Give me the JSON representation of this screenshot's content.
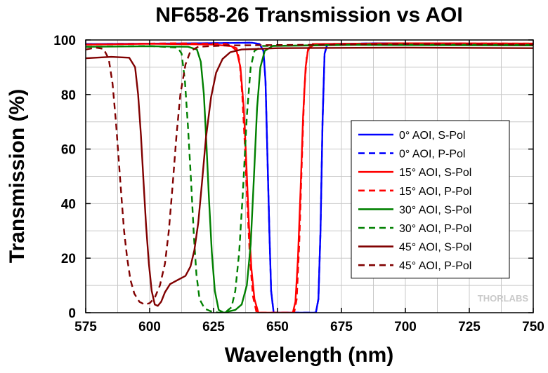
{
  "chart_data": {
    "type": "line",
    "title": "NF658-26 Transmission vs AOI",
    "xlabel": "Wavelength (nm)",
    "ylabel": "Transmission (%)",
    "xlim": [
      575,
      750
    ],
    "ylim": [
      0,
      100
    ],
    "xticks": [
      575,
      600,
      625,
      650,
      675,
      700,
      725,
      750
    ],
    "yticks": [
      0,
      20,
      40,
      60,
      80,
      100
    ],
    "grid": true,
    "legend_position": "right",
    "watermark": "THORLABS",
    "series": [
      {
        "name": "0° AOI, S-Pol",
        "color": "#0000ff",
        "dash": "solid",
        "points": [
          [
            575,
            98.5
          ],
          [
            620,
            98.8
          ],
          [
            640,
            99
          ],
          [
            643,
            98.5
          ],
          [
            644.5,
            96
          ],
          [
            645.3,
            85
          ],
          [
            646,
            60
          ],
          [
            646.8,
            30
          ],
          [
            647.5,
            8
          ],
          [
            648.5,
            0
          ],
          [
            665,
            0
          ],
          [
            666,
            5
          ],
          [
            666.8,
            30
          ],
          [
            667.6,
            70
          ],
          [
            668.4,
            95
          ],
          [
            669.5,
            98.5
          ],
          [
            690,
            98.8
          ],
          [
            720,
            98.7
          ],
          [
            750,
            98.6
          ]
        ]
      },
      {
        "name": "0° AOI, P-Pol",
        "color": "#0000ff",
        "dash": "dashed",
        "points": [
          [
            575,
            98.5
          ],
          [
            620,
            98.8
          ],
          [
            640,
            99
          ],
          [
            643,
            98.5
          ],
          [
            644.5,
            96
          ],
          [
            645.3,
            85
          ],
          [
            646,
            60
          ],
          [
            646.8,
            30
          ],
          [
            647.5,
            8
          ],
          [
            648.5,
            0
          ],
          [
            665,
            0
          ],
          [
            666,
            5
          ],
          [
            666.8,
            30
          ],
          [
            667.6,
            70
          ],
          [
            668.4,
            95
          ],
          [
            669.5,
            98.5
          ],
          [
            690,
            98.8
          ],
          [
            720,
            98.7
          ],
          [
            750,
            98.6
          ]
        ]
      },
      {
        "name": "15° AOI, S-Pol",
        "color": "#ff0000",
        "dash": "solid",
        "points": [
          [
            575,
            98.3
          ],
          [
            600,
            98.6
          ],
          [
            625,
            98.3
          ],
          [
            632,
            97.7
          ],
          [
            634,
            96
          ],
          [
            635.5,
            90
          ],
          [
            636.8,
            75
          ],
          [
            637.8,
            55
          ],
          [
            638.8,
            33
          ],
          [
            639.8,
            16
          ],
          [
            641,
            5
          ],
          [
            642.5,
            0
          ],
          [
            656,
            0
          ],
          [
            657,
            4
          ],
          [
            658,
            20
          ],
          [
            659,
            45
          ],
          [
            660,
            72
          ],
          [
            661,
            90
          ],
          [
            662,
            97
          ],
          [
            665,
            98.5
          ],
          [
            700,
            98.8
          ],
          [
            750,
            98.7
          ]
        ]
      },
      {
        "name": "15° AOI, P-Pol",
        "color": "#ff0000",
        "dash": "dashed",
        "points": [
          [
            575,
            98.3
          ],
          [
            610,
            98.8
          ],
          [
            630,
            98.5
          ],
          [
            634,
            97
          ],
          [
            635.2,
            92
          ],
          [
            636.2,
            80
          ],
          [
            637.2,
            62
          ],
          [
            638.2,
            40
          ],
          [
            639.2,
            20
          ],
          [
            640.4,
            6
          ],
          [
            641.8,
            0
          ],
          [
            656.5,
            0
          ],
          [
            657.5,
            5
          ],
          [
            658.5,
            25
          ],
          [
            659.5,
            55
          ],
          [
            660.5,
            82
          ],
          [
            661.5,
            95
          ],
          [
            663,
            98.5
          ],
          [
            700,
            98.8
          ],
          [
            750,
            98.7
          ]
        ]
      },
      {
        "name": "30° AOI, S-Pol",
        "color": "#008000",
        "dash": "solid",
        "points": [
          [
            575,
            97.5
          ],
          [
            600,
            97.7
          ],
          [
            615,
            97.5
          ],
          [
            618.5,
            96.5
          ],
          [
            620,
            92
          ],
          [
            621.2,
            80
          ],
          [
            622.2,
            62
          ],
          [
            623.2,
            42
          ],
          [
            624.3,
            22
          ],
          [
            625.5,
            8
          ],
          [
            627,
            1
          ],
          [
            629,
            0
          ],
          [
            631,
            0.5
          ],
          [
            633.5,
            1
          ],
          [
            636,
            3
          ],
          [
            638,
            10
          ],
          [
            639.5,
            25
          ],
          [
            640.8,
            50
          ],
          [
            642,
            75
          ],
          [
            643.3,
            90
          ],
          [
            645,
            96
          ],
          [
            648,
            97.8
          ],
          [
            680,
            98.2
          ],
          [
            750,
            98
          ]
        ]
      },
      {
        "name": "30° AOI, P-Pol",
        "color": "#008000",
        "dash": "dashed",
        "points": [
          [
            575,
            97.5
          ],
          [
            600,
            97.8
          ],
          [
            611,
            97.2
          ],
          [
            612.5,
            95
          ],
          [
            613.8,
            85
          ],
          [
            615,
            68
          ],
          [
            616.2,
            48
          ],
          [
            617.3,
            28
          ],
          [
            618.3,
            14
          ],
          [
            619.5,
            5
          ],
          [
            621.5,
            1.5
          ],
          [
            624,
            0.5
          ],
          [
            627,
            0
          ],
          [
            630,
            0.5
          ],
          [
            632,
            2
          ],
          [
            633.5,
            8
          ],
          [
            635,
            22
          ],
          [
            636.5,
            45
          ],
          [
            638,
            72
          ],
          [
            639.5,
            90
          ],
          [
            641,
            96
          ],
          [
            644,
            97.8
          ],
          [
            680,
            98.3
          ],
          [
            750,
            98.2
          ]
        ]
      },
      {
        "name": "45° AOI, S-Pol",
        "color": "#800000",
        "dash": "solid",
        "points": [
          [
            575,
            93.3
          ],
          [
            585,
            93.8
          ],
          [
            592,
            93.5
          ],
          [
            594.3,
            90
          ],
          [
            595.5,
            80
          ],
          [
            596.6,
            65
          ],
          [
            597.6,
            48
          ],
          [
            598.6,
            32
          ],
          [
            599.7,
            18
          ],
          [
            600.8,
            8
          ],
          [
            602,
            3
          ],
          [
            603.2,
            2.5
          ],
          [
            604.5,
            4
          ],
          [
            606,
            7.5
          ],
          [
            608,
            10.5
          ],
          [
            611,
            12
          ],
          [
            614,
            13.5
          ],
          [
            616,
            17
          ],
          [
            617.5,
            23
          ],
          [
            619,
            33
          ],
          [
            620.5,
            48
          ],
          [
            622,
            64
          ],
          [
            624,
            79
          ],
          [
            626,
            88
          ],
          [
            628.5,
            93
          ],
          [
            631.5,
            95.5
          ],
          [
            636,
            96.5
          ],
          [
            650,
            97
          ],
          [
            700,
            97.2
          ],
          [
            750,
            97
          ]
        ]
      },
      {
        "name": "45° AOI, P-Pol",
        "color": "#800000",
        "dash": "dashed",
        "points": [
          [
            575,
            96.5
          ],
          [
            579,
            97.2
          ],
          [
            582,
            96.7
          ],
          [
            584,
            93
          ],
          [
            585.5,
            84
          ],
          [
            586.8,
            70
          ],
          [
            588,
            55
          ],
          [
            589,
            42
          ],
          [
            590,
            30
          ],
          [
            591.2,
            20
          ],
          [
            592.5,
            12
          ],
          [
            594,
            7
          ],
          [
            596,
            4
          ],
          [
            598,
            3
          ],
          [
            600,
            3.5
          ],
          [
            602,
            5.5
          ],
          [
            604,
            10
          ],
          [
            606,
            18
          ],
          [
            607.5,
            30
          ],
          [
            609,
            47
          ],
          [
            610.5,
            65
          ],
          [
            612,
            80
          ],
          [
            614,
            91
          ],
          [
            616,
            96
          ],
          [
            619,
            97.5
          ],
          [
            630,
            98
          ],
          [
            700,
            98.5
          ],
          [
            750,
            98.3
          ]
        ]
      }
    ]
  }
}
